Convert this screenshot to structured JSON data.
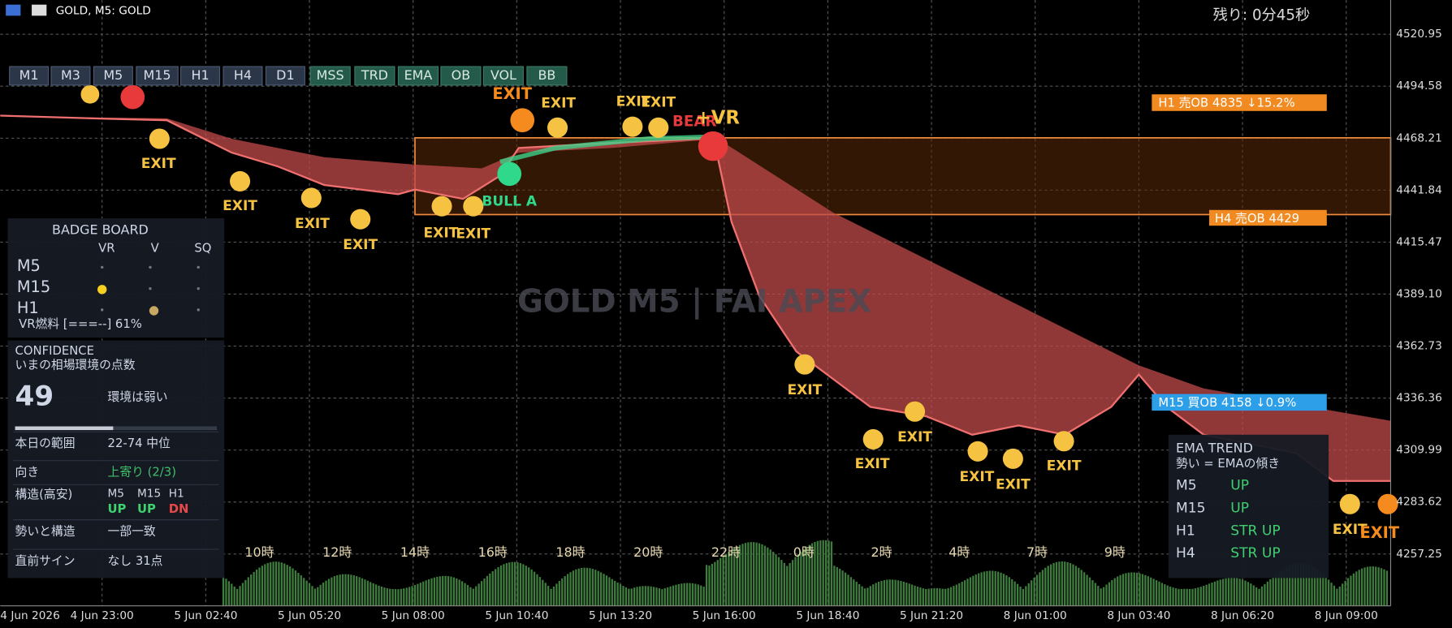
{
  "header": {
    "symbol": "GOLD, M5:  GOLD",
    "timer": "残り: 0分45秒",
    "watermark": "GOLD M5 | FAI APEX"
  },
  "toolbar": {
    "timeframes": [
      "M1",
      "M3",
      "M5",
      "M15",
      "H1",
      "H4",
      "D1"
    ],
    "toggles": [
      "MSS",
      "TRD",
      "EMA",
      "OB",
      "VOL",
      "BB"
    ]
  },
  "price_axis": [
    "4520.95",
    "4494.58",
    "4468.21",
    "4441.84",
    "4415.47",
    "4389.10",
    "4362.73",
    "4336.36",
    "4309.99",
    "4283.62",
    "4257.25"
  ],
  "time_axis": [
    "4 Jun 2026",
    "4 Jun 23:00",
    "5 Jun 02:40",
    "5 Jun 05:20",
    "5 Jun 08:00",
    "5 Jun 10:40",
    "5 Jun 13:20",
    "5 Jun 16:00",
    "5 Jun 18:40",
    "5 Jun 21:20",
    "8 Jun 01:00",
    "8 Jun 03:40",
    "8 Jun 06:20",
    "8 Jun 09:00"
  ],
  "session_hours": [
    "10時",
    "12時",
    "14時",
    "16時",
    "18時",
    "20時",
    "22時",
    "0時",
    "2時",
    "4時",
    "7時",
    "9時"
  ],
  "order_blocks": [
    "H1 売OB 4835 ↓15.2%",
    "H4 売OB 4429",
    "M15 買OB 4158 ↓0.9%"
  ],
  "signals": [
    "EXIT",
    "EXIT",
    "EXIT",
    "EXIT",
    "EXIT",
    "EXIT",
    "EXIT",
    "EXIT",
    "EXIT",
    "EXIT",
    "EXIT",
    "EXIT",
    "EXIT",
    "EXIT",
    "EXIT",
    "EXIT",
    "EXIT",
    "EXIT",
    "BULL A",
    "BEAR",
    "+VR"
  ],
  "badge_board": {
    "title": "BADGE BOARD",
    "columns": [
      "VR",
      "V",
      "SQ"
    ],
    "rows": [
      "M5",
      "M15",
      "H1"
    ],
    "fuel": "VR燃料 [===--] 61%"
  },
  "confidence": {
    "title": "CONFIDENCE",
    "subtitle": "いまの相場環境の点数",
    "score": "49",
    "verdict": "環境は弱い",
    "rows": [
      [
        "本日の範囲",
        "22-74 中位"
      ],
      [
        "向き",
        "上寄り (2/3)"
      ],
      [
        "勢いと構造",
        "一部一致"
      ],
      [
        "直前サイン",
        "なし 31点"
      ]
    ],
    "structure": {
      "label": "構造(高安)",
      "timeframes": [
        "M5",
        "M15",
        "H1"
      ],
      "states": [
        "UP",
        "UP",
        "DN"
      ]
    }
  },
  "ema_trend": {
    "title": "EMA TREND",
    "subtitle": "勢い = EMAの傾き",
    "rows": [
      [
        "M5",
        "UP"
      ],
      [
        "M15",
        "UP"
      ],
      [
        "H1",
        "STR UP"
      ],
      [
        "H4",
        "STR UP"
      ]
    ]
  }
}
